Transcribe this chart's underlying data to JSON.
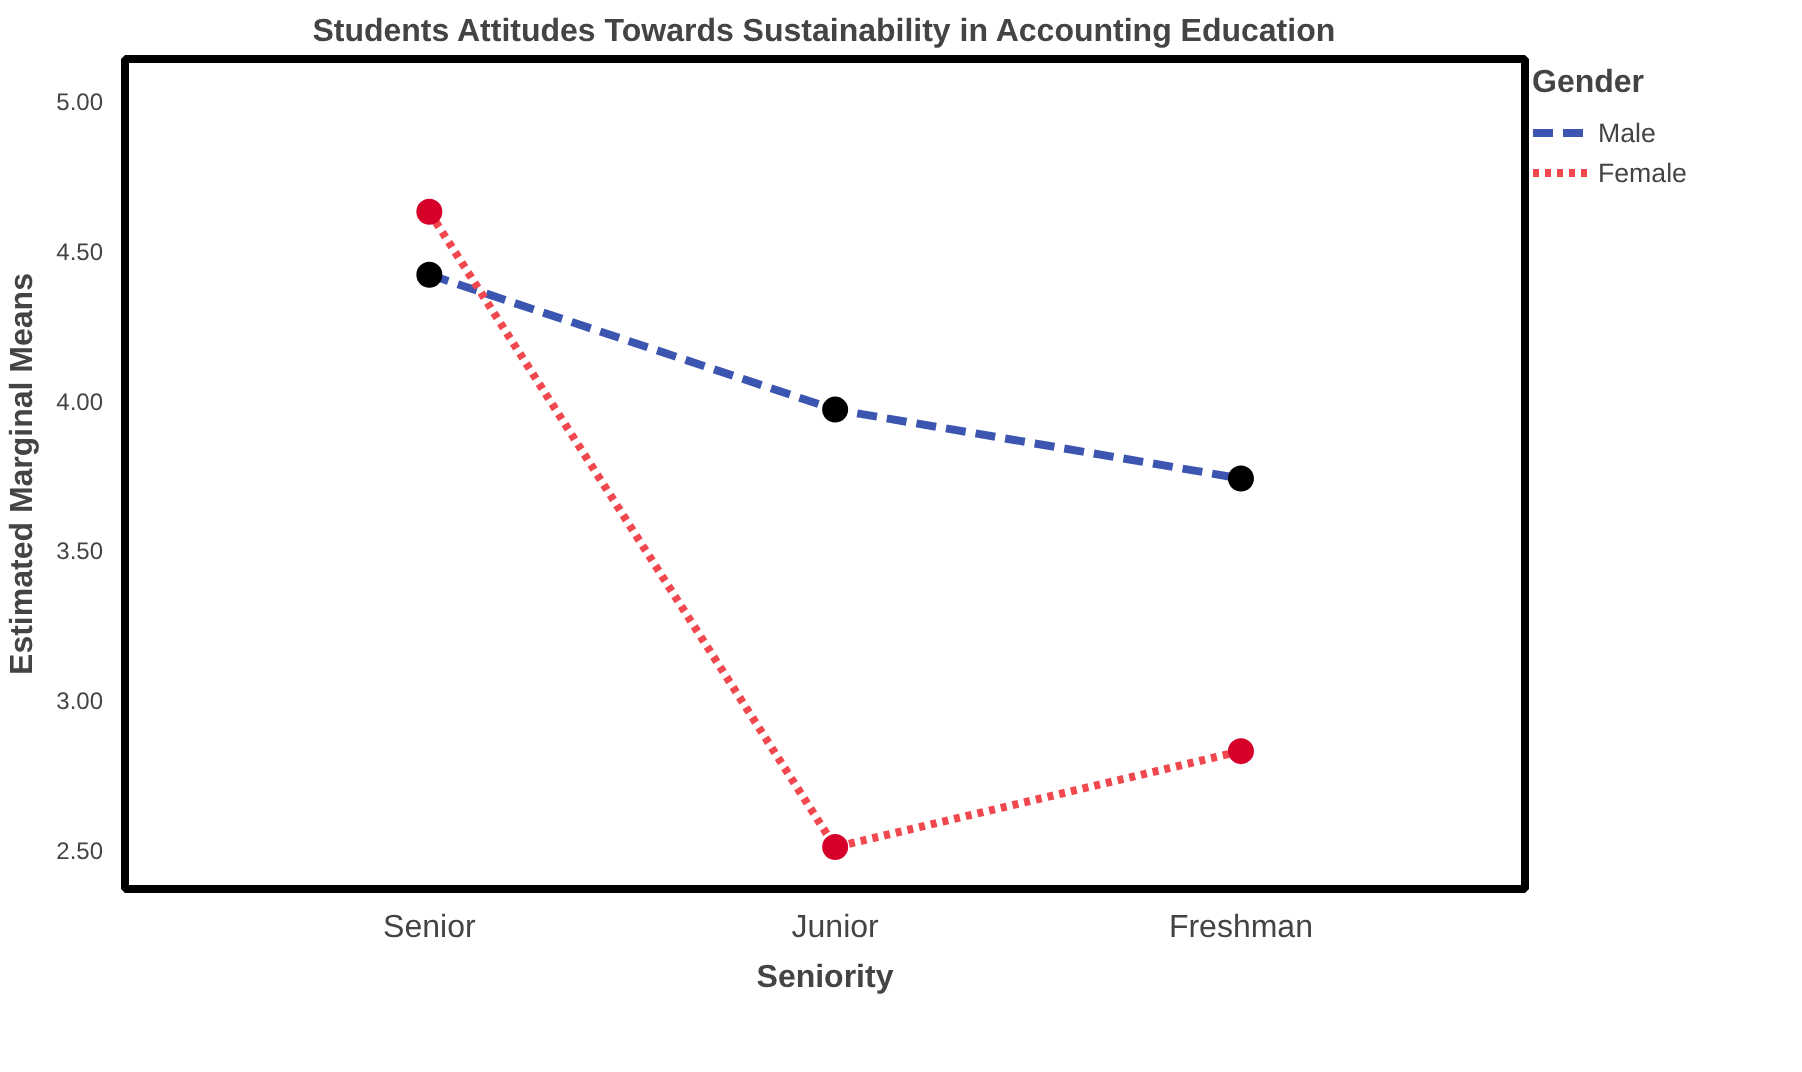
{
  "chart_data": {
    "type": "line",
    "title": "Students Attitudes Towards Sustainability in Accounting Education",
    "xlabel": "Seniority",
    "ylabel": "Estimated Marginal Means",
    "legend_title": "Gender",
    "categories": [
      "Senior",
      "Junior",
      "Freshman"
    ],
    "series": [
      {
        "name": "Male",
        "color": "#3c55b0",
        "line_style": "dashed",
        "colors": [
          "#000000",
          "#000000",
          "#000000"
        ],
        "values": [
          4.42,
          3.97,
          3.74
        ]
      },
      {
        "name": "Female",
        "color": "#f0484e",
        "line_style": "dotted",
        "colors": [
          "#d6002a",
          "#d6002a",
          "#d6002a"
        ],
        "values": [
          4.63,
          2.51,
          2.83
        ]
      }
    ],
    "ylim": [
      2.37,
      5.14
    ],
    "yticks": [
      {
        "value": 2.5,
        "label": "2.50"
      },
      {
        "value": 3.0,
        "label": "3.00"
      },
      {
        "value": 3.5,
        "label": "3.50"
      },
      {
        "value": 4.0,
        "label": "4.00"
      },
      {
        "value": 4.5,
        "label": "4.50"
      },
      {
        "value": 5.0,
        "label": "5.00"
      }
    ],
    "grid": false,
    "legend": "top right",
    "marker": "circle"
  }
}
